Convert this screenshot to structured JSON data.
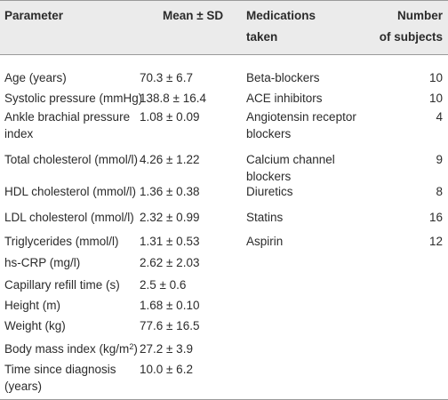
{
  "headers": {
    "parameter": "Parameter",
    "mean_sd": "Mean ± SD",
    "medications_line1": "Medications",
    "medications_line2": "taken",
    "number_line1": "Number",
    "number_line2": "of subjects"
  },
  "parameters": [
    {
      "name": "Age (years)",
      "value": "70.3 ± 6.7"
    },
    {
      "name": "Systolic pressure (mmHg)",
      "value": "138.8 ± 16.4"
    },
    {
      "name_line1": "Ankle brachial pressure",
      "name_line2": "index",
      "value": "1.08 ± 0.09"
    },
    {
      "name": "Total cholesterol (mmol/l)",
      "value": "4.26 ± 1.22"
    },
    {
      "name": "HDL cholesterol (mmol/l)",
      "value": "1.36 ± 0.38"
    },
    {
      "name": "LDL cholesterol (mmol/l)",
      "value": "2.32 ± 0.99"
    },
    {
      "name": "Triglycerides (mmol/l)",
      "value": "1.31 ± 0.53"
    },
    {
      "name": "hs-CRP (mg/l)",
      "value": "2.62 ± 2.03"
    },
    {
      "name": "Capillary refill time (s)",
      "value": "2.5  ± 0.6"
    },
    {
      "name": "Height (m)",
      "value": "1.68 ± 0.10"
    },
    {
      "name": "Weight (kg)",
      "value": "77.6 ± 16.5"
    },
    {
      "name_prefix": "Body mass index (kg/m",
      "name_sup": "2",
      "name_suffix": ")",
      "value": "27.2 ± 3.9"
    },
    {
      "name_line1": "Time since diagnosis",
      "name_line2": "(years)",
      "value": "10.0 ± 6.2"
    }
  ],
  "medications": [
    {
      "name": "Beta-blockers",
      "count": "10"
    },
    {
      "name": "ACE inhibitors",
      "count": "10"
    },
    {
      "name_line1": "Angiotensin receptor",
      "name_line2": "blockers",
      "count": "4"
    },
    {
      "name_line1": "Calcium channel",
      "name_line2": "blockers",
      "count": "9"
    },
    {
      "name": "Diuretics",
      "count": "8"
    },
    {
      "name": "Statins",
      "count": "16"
    },
    {
      "name": "Aspirin",
      "count": "12"
    }
  ]
}
